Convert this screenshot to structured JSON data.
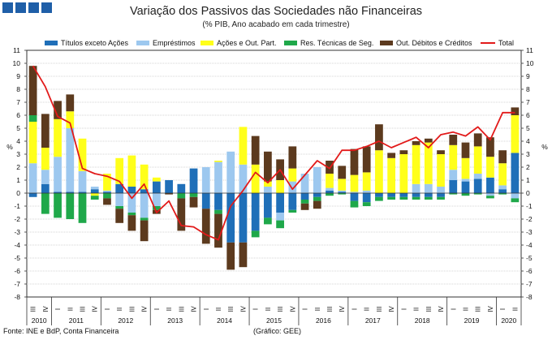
{
  "header": {
    "title": "Variação dos Passivos das Sociedades não Financeiras",
    "subtitle": "(% PIB, Ano acabado em cada trimestre)"
  },
  "footer": {
    "source": "Fonte: INE e BdP, Conta Financeira",
    "credit": "(Gráfico: GEE)"
  },
  "colors": {
    "titulos": "#1f6fb8",
    "emprestimos": "#9dc8ef",
    "acoes": "#ffff1a",
    "res_tecnicas": "#1fa84a",
    "out_debitos": "#5c3a1e",
    "total": "#e21a1a"
  },
  "chart_data": {
    "type": "bar",
    "stacked": true,
    "title": "Variação dos Passivos das Sociedades não Financeiras",
    "subtitle": "(% PIB, Ano acabado em cada trimestre)",
    "ylabel": "%",
    "ylim": [
      -8,
      11
    ],
    "yticks": [
      -8,
      -7,
      -6,
      -5,
      -4,
      -3,
      -2,
      -1,
      0,
      1,
      2,
      3,
      4,
      5,
      6,
      7,
      8,
      9,
      10,
      11
    ],
    "grid": "horizontal",
    "legend": "top",
    "categories": [
      "III",
      "IV",
      "I",
      "II",
      "III",
      "IV",
      "I",
      "II",
      "III",
      "IV",
      "I",
      "II",
      "III",
      "IV",
      "I",
      "II",
      "III",
      "IV",
      "I",
      "II",
      "III",
      "IV",
      "I",
      "II",
      "III",
      "IV",
      "I",
      "II",
      "III",
      "IV",
      "I",
      "II",
      "III",
      "IV",
      "I",
      "II",
      "III",
      "IV",
      "I",
      "II"
    ],
    "years": [
      {
        "label": "2010",
        "from": 0,
        "to": 1
      },
      {
        "label": "2011",
        "from": 2,
        "to": 5
      },
      {
        "label": "2012",
        "from": 6,
        "to": 9
      },
      {
        "label": "2013",
        "from": 10,
        "to": 13
      },
      {
        "label": "2014",
        "from": 14,
        "to": 17
      },
      {
        "label": "2015",
        "from": 18,
        "to": 21
      },
      {
        "label": "2016",
        "from": 22,
        "to": 25
      },
      {
        "label": "2017",
        "from": 26,
        "to": 29
      },
      {
        "label": "2018",
        "from": 30,
        "to": 33
      },
      {
        "label": "2019",
        "from": 34,
        "to": 37
      },
      {
        "label": "2020",
        "from": 38,
        "to": 39
      }
    ],
    "series": [
      {
        "key": "titulos",
        "name": "Títulos exceto Ações",
        "color": "#1f6fb8",
        "values": [
          -0.3,
          0.7,
          0.1,
          0.1,
          0.1,
          0.3,
          0.1,
          0.7,
          0.5,
          0.3,
          0.9,
          1.0,
          0.7,
          1.9,
          -1.2,
          -1.3,
          -3.8,
          -3.8,
          -2.9,
          -1.9,
          -1.5,
          -1.3,
          -0.5,
          -0.3,
          0.2,
          0.1,
          -0.6,
          -0.7,
          -0.3,
          -0.3,
          -0.3,
          -0.3,
          -0.3,
          -0.3,
          1.0,
          0.9,
          1.1,
          1.2,
          0.3,
          3.1
        ]
      },
      {
        "key": "emprestimos",
        "name": "Empréstimos",
        "color": "#9dc8ef",
        "values": [
          2.3,
          1.1,
          2.7,
          4.9,
          1.6,
          0.2,
          0.1,
          -1.0,
          -1.5,
          -1.9,
          -1.0,
          0.0,
          0.0,
          0.0,
          2.0,
          2.4,
          3.2,
          2.2,
          0.0,
          0.5,
          -0.6,
          0.9,
          1.5,
          2.0,
          0.2,
          0.1,
          0.1,
          0.2,
          0.0,
          0.0,
          0.0,
          0.7,
          0.7,
          0.5,
          0.8,
          0.2,
          0.4,
          -0.2,
          0.3,
          -0.4
        ]
      },
      {
        "key": "acoes",
        "name": "Ações e Out. Part.",
        "color": "#ffff1a",
        "values": [
          3.2,
          1.7,
          2.9,
          1.3,
          2.5,
          -0.2,
          1.3,
          2.0,
          2.4,
          1.9,
          0.3,
          0.0,
          0.0,
          0.0,
          0.0,
          0.1,
          0.0,
          2.9,
          2.2,
          0.4,
          1.0,
          1.0,
          0.0,
          0.0,
          1.1,
          0.9,
          1.3,
          1.4,
          3.3,
          2.7,
          3.0,
          3.0,
          3.2,
          2.5,
          1.9,
          1.6,
          2.1,
          1.6,
          1.7,
          2.9
        ]
      },
      {
        "key": "res_tecnicas",
        "name": "Res. Técnicas de Seg.",
        "color": "#1fa84a",
        "values": [
          0.5,
          -1.6,
          -1.9,
          -2.0,
          -2.3,
          -0.3,
          -0.4,
          -0.2,
          -0.2,
          -0.2,
          -0.3,
          0.0,
          -0.4,
          -0.3,
          0.0,
          -0.3,
          0.0,
          0.0,
          -0.5,
          -0.5,
          -0.6,
          -0.2,
          -0.3,
          -0.3,
          -0.2,
          -0.1,
          -0.5,
          -0.3,
          -0.3,
          -0.2,
          -0.2,
          -0.2,
          -0.2,
          -0.2,
          -0.1,
          -0.2,
          -0.1,
          -0.2,
          -0.1,
          -0.3
        ]
      },
      {
        "key": "out_debitos",
        "name": "Out. Débitos e Créditos",
        "color": "#5c3a1e",
        "values": [
          3.8,
          2.6,
          1.4,
          1.3,
          0.0,
          0.0,
          -0.5,
          -1.1,
          -1.2,
          -1.6,
          -0.3,
          -0.1,
          -2.5,
          -0.8,
          -2.7,
          -2.6,
          -2.1,
          -1.9,
          2.2,
          2.3,
          1.6,
          1.7,
          -0.5,
          -0.6,
          1.0,
          1.0,
          2.0,
          2.0,
          2.0,
          0.4,
          0.3,
          0.3,
          0.3,
          0.3,
          0.8,
          1.2,
          1.0,
          1.5,
          1.0,
          0.6
        ]
      },
      {
        "key": "total",
        "name": "Total",
        "color": "#e21a1a",
        "type": "line",
        "values": [
          9.8,
          8.2,
          5.9,
          5.4,
          1.9,
          1.5,
          1.3,
          0.9,
          -0.4,
          0.7,
          -1.5,
          -0.6,
          -2.5,
          -2.6,
          -3.2,
          -3.6,
          -1.0,
          0.2,
          1.6,
          0.8,
          1.8,
          0.3,
          1.4,
          2.5,
          1.9,
          3.3,
          3.3,
          3.6,
          4.0,
          3.5,
          3.9,
          4.3,
          3.5,
          4.5,
          4.7,
          4.4,
          5.1,
          4.1,
          6.2,
          6.2
        ]
      }
    ]
  }
}
